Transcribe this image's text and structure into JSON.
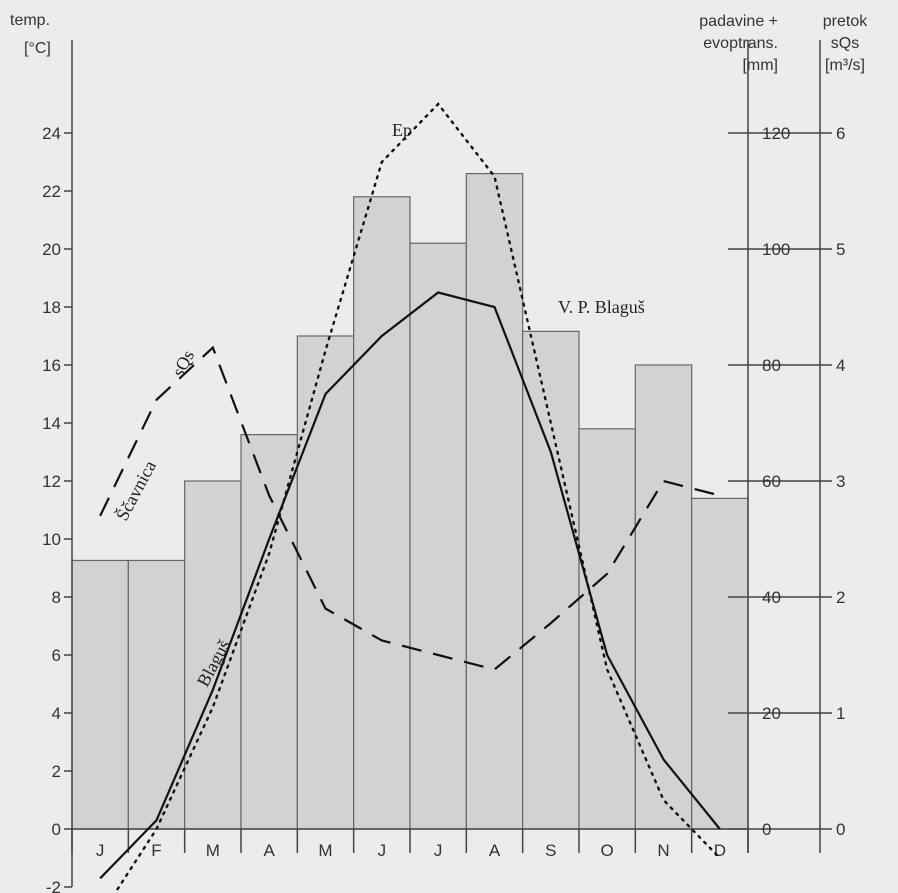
{
  "chart_data": {
    "type": "bar+line",
    "categories": [
      "J",
      "F",
      "M",
      "A",
      "M",
      "J",
      "J",
      "A",
      "S",
      "O",
      "N",
      "D"
    ],
    "left_axis": {
      "title_lines": [
        "temp.",
        "[°C]"
      ],
      "min": -2,
      "max": 24,
      "step": 2
    },
    "right_axis_precip": {
      "title_lines": [
        "padavine +",
        "evoptrans.",
        "[mm]"
      ],
      "ticks": [
        0,
        20,
        40,
        60,
        80,
        100,
        120
      ]
    },
    "right_axis_flow": {
      "title_lines": [
        "pretok",
        "sQs",
        "[m³/s]"
      ],
      "ticks": [
        0,
        1,
        2,
        3,
        4,
        5,
        6
      ]
    },
    "bars": {
      "name": "padavine + evoptrans.",
      "values": [
        46.3,
        46.3,
        60,
        68,
        85,
        109,
        101,
        113,
        85.8,
        69,
        80,
        57
      ]
    },
    "lines": [
      {
        "name": "Ep",
        "style": "dotted",
        "values": [
          -3,
          0,
          4.2,
          9.5,
          16.5,
          23,
          25,
          22.5,
          14,
          5.5,
          1,
          -1
        ]
      },
      {
        "name": "V. P. Blaguš",
        "style": "solid",
        "values": [
          -1.7,
          0.3,
          4.8,
          10,
          15,
          17,
          18.5,
          18,
          13,
          6,
          2.4,
          0
        ]
      },
      {
        "name": "sQs",
        "style": "dashed",
        "x_positions": [
          0.5,
          1.5,
          2.5,
          3.5,
          4.5,
          5.5,
          6.5,
          7.5,
          8.5,
          9.5,
          10.5,
          11.5
        ],
        "values": [
          10.8,
          14.8,
          16.6,
          11.5,
          7.6,
          6.5,
          6,
          5.5,
          7.1,
          8.8,
          12,
          11.5
        ]
      }
    ],
    "annotations": [
      {
        "text": "Ep",
        "series": "Ep"
      },
      {
        "text": "V. P. Blaguš",
        "series": "V. P. Blaguš"
      },
      {
        "text": "sQs",
        "series": "sQs"
      },
      {
        "text": "Ščavnica",
        "series": "sQs"
      },
      {
        "text": "Blaguš",
        "series": "V. P. Blaguš"
      }
    ],
    "grid": false,
    "legend": "none"
  }
}
